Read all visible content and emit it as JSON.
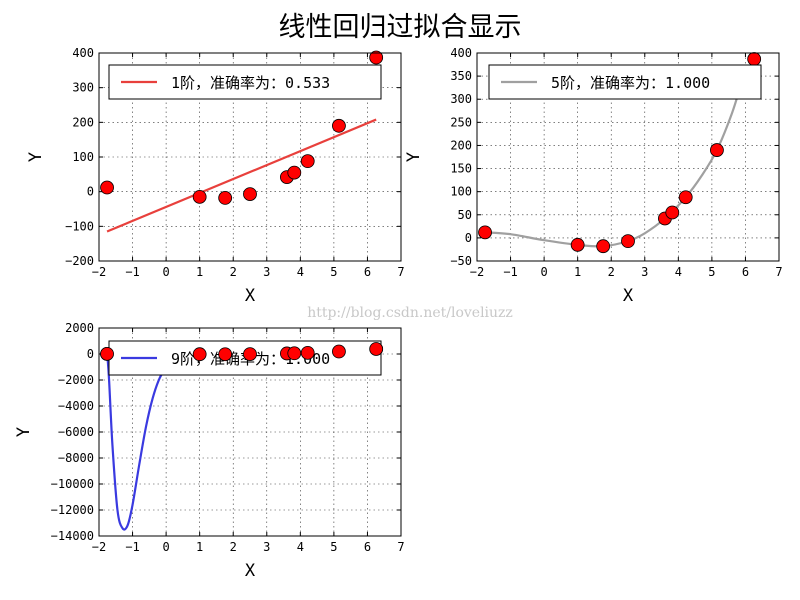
{
  "figure": {
    "title": "线性回归过拟合显示",
    "watermark": "http://blog.csdn.net/loveliuzz"
  },
  "chart_data": [
    {
      "type": "line",
      "subplot": "top-left",
      "xlabel": "X",
      "ylabel": "Y",
      "xlim": [
        -2,
        7
      ],
      "ylim": [
        -200,
        400
      ],
      "xticks": [
        -2,
        -1,
        0,
        1,
        2,
        3,
        4,
        5,
        6,
        7
      ],
      "yticks": [
        -200,
        -100,
        0,
        100,
        200,
        300,
        400
      ],
      "ytick_labels": [
        "−200",
        "−100",
        "0",
        "100",
        "200",
        "300",
        "400"
      ],
      "xtick_labels": [
        "−2",
        "−1",
        "0",
        "1",
        "2",
        "3",
        "4",
        "5",
        "6",
        "7"
      ],
      "grid": true,
      "legend_position": "top",
      "series": [
        {
          "name": "1阶，准确率为：0.533",
          "kind": "curve",
          "color": "#e8403c",
          "x": [
            -1.76,
            6.26
          ],
          "y": [
            -115,
            208
          ]
        }
      ],
      "points": {
        "color": "#ff0000",
        "x": [
          -1.76,
          1.0,
          1.76,
          2.5,
          3.6,
          3.82,
          4.22,
          5.15,
          6.26
        ],
        "y": [
          12,
          -15,
          -18,
          -7,
          42,
          55,
          88,
          190,
          387
        ]
      }
    },
    {
      "type": "line",
      "subplot": "top-right",
      "xlabel": "X",
      "ylabel": "Y",
      "xlim": [
        -2,
        7
      ],
      "ylim": [
        -50,
        400
      ],
      "xticks": [
        -2,
        -1,
        0,
        1,
        2,
        3,
        4,
        5,
        6,
        7
      ],
      "yticks": [
        -50,
        0,
        50,
        100,
        150,
        200,
        250,
        300,
        350,
        400
      ],
      "ytick_labels": [
        "−50",
        "0",
        "50",
        "100",
        "150",
        "200",
        "250",
        "300",
        "350",
        "400"
      ],
      "xtick_labels": [
        "−2",
        "−1",
        "0",
        "1",
        "2",
        "3",
        "4",
        "5",
        "6",
        "7"
      ],
      "grid": true,
      "legend_position": "top",
      "series": [
        {
          "name": "5阶，准确率为：1.000",
          "kind": "curve",
          "color": "#a0a0a0",
          "x": [
            -1.76,
            -1.0,
            0.0,
            1.0,
            1.76,
            2.5,
            3.0,
            3.6,
            4.22,
            4.7,
            5.15,
            5.6,
            5.9
          ],
          "y": [
            12,
            8,
            -5,
            -15,
            -18,
            -7,
            10,
            42,
            88,
            135,
            190,
            270,
            340
          ]
        }
      ],
      "points": {
        "color": "#ff0000",
        "x": [
          -1.76,
          1.0,
          1.76,
          2.5,
          3.6,
          3.82,
          4.22,
          5.15,
          6.26
        ],
        "y": [
          12,
          -15,
          -18,
          -7,
          42,
          55,
          88,
          190,
          387
        ]
      }
    },
    {
      "type": "line",
      "subplot": "bottom-left",
      "xlabel": "X",
      "ylabel": "Y",
      "xlim": [
        -2,
        7
      ],
      "ylim": [
        -14000,
        2000
      ],
      "xticks": [
        -2,
        -1,
        0,
        1,
        2,
        3,
        4,
        5,
        6,
        7
      ],
      "yticks": [
        -14000,
        -12000,
        -10000,
        -8000,
        -6000,
        -4000,
        -2000,
        0,
        2000
      ],
      "ytick_labels": [
        "−14000",
        "−12000",
        "−10000",
        "−8000",
        "−6000",
        "−4000",
        "−2000",
        "0",
        "2000"
      ],
      "xtick_labels": [
        "−2",
        "−1",
        "0",
        "1",
        "2",
        "3",
        "4",
        "5",
        "6",
        "7"
      ],
      "grid": true,
      "legend_position": "top",
      "series": [
        {
          "name": "9阶，准确率为：1.000",
          "kind": "curve",
          "color": "#3a3ae0",
          "x": [
            -1.76,
            -1.7,
            -1.6,
            -1.45,
            -1.3,
            -1.15,
            -1.0,
            -0.8,
            -0.6,
            -0.4,
            -0.2,
            0.0,
            0.1
          ],
          "y": [
            200,
            -2000,
            -7000,
            -12000,
            -13400,
            -13200,
            -11600,
            -8500,
            -5600,
            -3400,
            -1900,
            -1050,
            -800
          ]
        }
      ],
      "points": {
        "color": "#ff0000",
        "x": [
          -1.76,
          1.0,
          1.76,
          2.5,
          3.6,
          3.82,
          4.22,
          5.15,
          6.26
        ],
        "y": [
          12,
          -15,
          -18,
          -7,
          42,
          55,
          88,
          190,
          387
        ]
      }
    }
  ]
}
